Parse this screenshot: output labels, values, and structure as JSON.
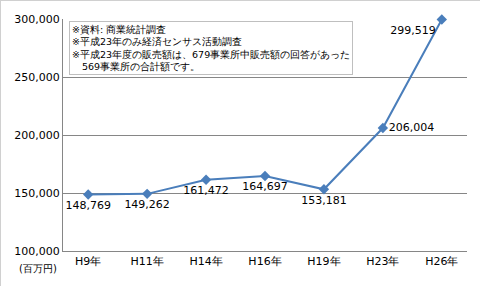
{
  "chart_data": {
    "type": "line",
    "categories": [
      "H9年",
      "H11年",
      "H14年",
      "H16年",
      "H19年",
      "H23年",
      "H26年"
    ],
    "values": [
      148769,
      149262,
      161472,
      164697,
      153181,
      206004,
      299519
    ],
    "value_labels": [
      "148,769",
      "149,262",
      "161,472",
      "164,697",
      "153,181",
      "206,004",
      "299,519"
    ],
    "data_labels": true,
    "color": "#4a7ebb",
    "marker": "diamond",
    "line_style": "solid",
    "ylabel": "(百万円)",
    "annotations": [
      "※資料: 商業統計調査",
      "※平成23年のみ経済センサス活動調査",
      "※平成23年度の販売額は、679事業所中販売額の回答があった",
      "　569事業所の合計額です。"
    ],
    "ylim": [
      100000,
      300000
    ],
    "yticks": [
      {
        "value": 100000,
        "label": "100,000"
      },
      {
        "value": 150000,
        "label": "150,000"
      },
      {
        "value": 200000,
        "label": "200,000"
      },
      {
        "value": 250000,
        "label": "250,000"
      },
      {
        "value": 300000,
        "label": "300,000"
      }
    ],
    "grid": true
  }
}
